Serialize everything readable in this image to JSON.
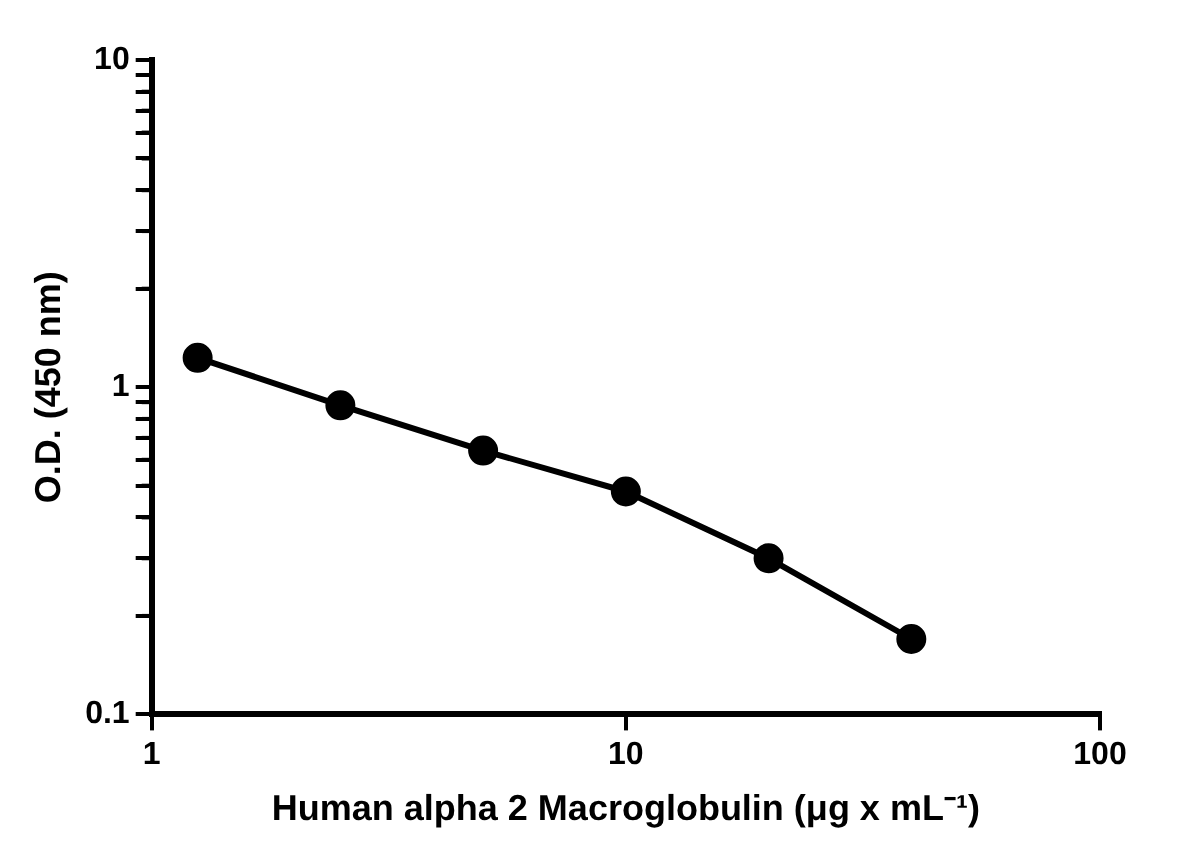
{
  "chart_data": {
    "type": "line",
    "xlabel": "Human alpha 2 Macroglobulin (μg x mL⁻¹)",
    "ylabel": "O.D. (450 nm)",
    "x": [
      1.25,
      2.5,
      5,
      10,
      20,
      40
    ],
    "series": [
      {
        "color": "#000000",
        "values": [
          1.23,
          0.88,
          0.64,
          0.48,
          0.3,
          0.17
        ]
      }
    ],
    "log": "xy",
    "xlim": [
      1,
      100
    ],
    "xticks": [
      1,
      10,
      100
    ],
    "ylim": [
      0.1,
      10
    ],
    "yticks": [
      0.1,
      {
        "value": 0.2,
        "label": null
      },
      {
        "value": 0.3,
        "label": null
      },
      {
        "value": 0.4,
        "label": null
      },
      {
        "value": 0.5,
        "label": null
      },
      {
        "value": 0.6,
        "label": null
      },
      {
        "value": 0.7,
        "label": null
      },
      {
        "value": 0.8,
        "label": null
      },
      {
        "value": 0.9,
        "label": null
      },
      1,
      {
        "value": 2,
        "label": null
      },
      {
        "value": 3,
        "label": null
      },
      {
        "value": 4,
        "label": null
      },
      {
        "value": 5,
        "label": null
      },
      {
        "value": 6,
        "label": null
      },
      {
        "value": 7,
        "label": null
      },
      {
        "value": 8,
        "label": null
      },
      {
        "value": 9,
        "label": null
      },
      10
    ],
    "grid": false,
    "legend": false,
    "marker": "circle",
    "line_style": "solid"
  }
}
